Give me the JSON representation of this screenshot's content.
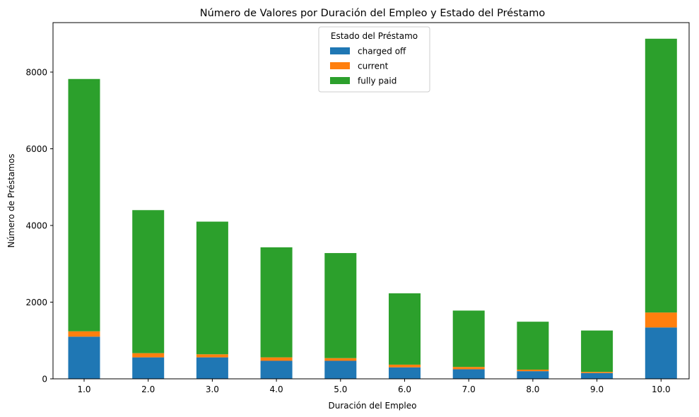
{
  "chart_data": {
    "type": "bar",
    "stacked": true,
    "title": "Número de Valores por Duración del Empleo y Estado del Préstamo",
    "xlabel": "Duración del Empleo",
    "ylabel": "Número de Préstamos",
    "categories": [
      "1.0",
      "2.0",
      "3.0",
      "4.0",
      "5.0",
      "6.0",
      "7.0",
      "8.0",
      "9.0",
      "10.0"
    ],
    "series": [
      {
        "name": "charged off",
        "color": "#1f77b4",
        "values": [
          1100,
          560,
          560,
          470,
          470,
          300,
          250,
          200,
          150,
          1340
        ]
      },
      {
        "name": "current",
        "color": "#ff7f0e",
        "values": [
          140,
          110,
          80,
          90,
          70,
          70,
          60,
          40,
          30,
          390
        ]
      },
      {
        "name": "fully paid",
        "color": "#2ca02c",
        "values": [
          6580,
          3730,
          3460,
          2870,
          2740,
          1860,
          1470,
          1250,
          1080,
          7140
        ]
      }
    ],
    "ylim": [
      0,
      9290
    ],
    "yticks": [
      0,
      2000,
      4000,
      6000,
      8000
    ],
    "legend": {
      "title": "Estado del Préstamo",
      "placement": "top-center"
    },
    "grid": false
  }
}
